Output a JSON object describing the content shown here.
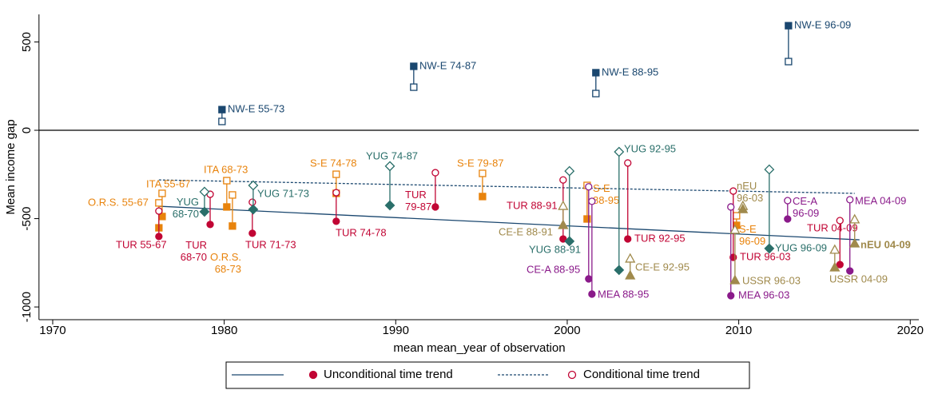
{
  "chart_data": {
    "type": "dropline-scatter",
    "y_axis_label": "Mean income gap",
    "x_axis_label": "mean mean_year of observation",
    "xlim": [
      1969.2,
      2020.5
    ],
    "ylim": [
      -1072,
      656
    ],
    "xticks": [
      1970,
      1980,
      1990,
      2000,
      2010,
      2020
    ],
    "yticks": [
      -1000,
      -500,
      0,
      500
    ],
    "yline": 0,
    "points": [
      {
        "label": "NW-E 55-73",
        "x": 1979.87,
        "unconditional": 117,
        "conditional": 50,
        "color": "#1a476f",
        "marker": "square"
      },
      {
        "label": "NW-E 74-87",
        "x": 1991.05,
        "unconditional": 362,
        "conditional": 244,
        "color": "#1a476f",
        "marker": "square"
      },
      {
        "label": "NW-E 88-95",
        "x": 2001.67,
        "unconditional": 326,
        "conditional": 208,
        "color": "#1a476f",
        "marker": "square"
      },
      {
        "label": "NW-E 96-09",
        "x": 2012.9,
        "unconditional": 592,
        "conditional": 389,
        "color": "#1a476f",
        "marker": "square"
      },
      {
        "label": "ITA 55-67",
        "x": 1976.38,
        "unconditional": -488,
        "conditional": -357,
        "color": "#e8830c",
        "marker": "square"
      },
      {
        "label": "O.R.S. 55-67",
        "x": 1976.19,
        "unconditional": -552,
        "conditional": -411,
        "color": "#e8830c",
        "marker": "square"
      },
      {
        "label": "ITA 68-73",
        "x": 1980.15,
        "unconditional": -434,
        "conditional": -285,
        "color": "#e8830c",
        "marker": "square"
      },
      {
        "label": "O.R.S. 68-73",
        "x": 1980.48,
        "unconditional": -542,
        "conditional": -366,
        "color": "#e8830c",
        "marker": "square"
      },
      {
        "label": "S-E 74-78",
        "x": 1986.53,
        "unconditional": -357,
        "conditional": -249,
        "color": "#e8830c",
        "marker": "square"
      },
      {
        "label": "S-E 79-87",
        "x": 1995.06,
        "unconditional": -375,
        "conditional": -244,
        "color": "#e8830c",
        "marker": "square"
      },
      {
        "label": "S-E 88-95",
        "x": 2001.16,
        "unconditional": -502,
        "conditional": -312,
        "color": "#e8830c",
        "marker": "square"
      },
      {
        "label": "S-E 96-09",
        "x": 2009.87,
        "unconditional": -538,
        "conditional": -484,
        "color": "#e8830c",
        "marker": "square"
      },
      {
        "label": "TUR 55-67",
        "x": 1976.19,
        "unconditional": -601,
        "conditional": -457,
        "color": "#c10534",
        "marker": "circle"
      },
      {
        "label": "TUR 68-70",
        "x": 1979.18,
        "unconditional": -533,
        "conditional": -362,
        "color": "#c10534",
        "marker": "circle"
      },
      {
        "label": "TUR 71-73",
        "x": 1981.64,
        "unconditional": -583,
        "conditional": -407,
        "color": "#c10534",
        "marker": "circle"
      },
      {
        "label": "TUR 74-78",
        "x": 1986.53,
        "unconditional": -515,
        "conditional": -353,
        "color": "#c10534",
        "marker": "circle"
      },
      {
        "label": "TUR 79-87",
        "x": 1992.31,
        "unconditional": -434,
        "conditional": -240,
        "color": "#c10534",
        "marker": "circle"
      },
      {
        "label": "TUR 88-91",
        "x": 1999.76,
        "unconditional": -615,
        "conditional": -281,
        "color": "#c10534",
        "marker": "circle"
      },
      {
        "label": "TUR 92-95",
        "x": 2003.53,
        "unconditional": -615,
        "conditional": -185,
        "color": "#c10534",
        "marker": "circle"
      },
      {
        "label": "TUR 96-03",
        "x": 2009.68,
        "unconditional": -719,
        "conditional": -344,
        "color": "#c10534",
        "marker": "circle"
      },
      {
        "label": "TUR 04-09",
        "x": 2015.9,
        "unconditional": -760,
        "conditional": -511,
        "color": "#c10534",
        "marker": "circle"
      },
      {
        "label": "YUG 68-70",
        "x": 1978.85,
        "unconditional": -461,
        "conditional": -348,
        "color": "#2a6f6a",
        "marker": "diamond"
      },
      {
        "label": "YUG 71-73",
        "x": 1981.69,
        "unconditional": -448,
        "conditional": -312,
        "color": "#2a6f6a",
        "marker": "diamond"
      },
      {
        "label": "YUG 74-87",
        "x": 1989.66,
        "unconditional": -425,
        "conditional": -203,
        "color": "#2a6f6a",
        "marker": "diamond"
      },
      {
        "label": "YUG 88-91",
        "x": 2000.13,
        "unconditional": -628,
        "conditional": -231,
        "color": "#2a6f6a",
        "marker": "diamond"
      },
      {
        "label": "YUG 92-95",
        "x": 2003.02,
        "unconditional": -791,
        "conditional": -122,
        "color": "#2a6f6a",
        "marker": "diamond"
      },
      {
        "label": "YUG 96-09",
        "x": 2011.78,
        "unconditional": -669,
        "conditional": -222,
        "color": "#2a6f6a",
        "marker": "diamond"
      },
      {
        "label": "MEA 88-95",
        "x": 2001.44,
        "unconditional": -927,
        "conditional": -402,
        "color": "#8a1a8a",
        "marker": "circle"
      },
      {
        "label": "MEA 96-03",
        "x": 2009.54,
        "unconditional": -936,
        "conditional": -434,
        "color": "#8a1a8a",
        "marker": "circle"
      },
      {
        "label": "MEA 04-09",
        "x": 2016.48,
        "unconditional": -796,
        "conditional": -393,
        "color": "#8a1a8a",
        "marker": "circle"
      },
      {
        "label": "CE-A 88-95",
        "x": 2001.25,
        "unconditional": -841,
        "conditional": -320,
        "color": "#8a1a8a",
        "marker": "circle"
      },
      {
        "label": "CE-A 96-09",
        "x": 2012.85,
        "unconditional": -502,
        "conditional": -398,
        "color": "#8a1a8a",
        "marker": "circle"
      },
      {
        "label": "CE-E 88-91",
        "x": 1999.76,
        "unconditional": -538,
        "conditional": -430,
        "color": "#a08a4c",
        "marker": "triangle"
      },
      {
        "label": "CE-E 92-95",
        "x": 2003.67,
        "unconditional": -823,
        "conditional": -728,
        "color": "#a08a4c",
        "marker": "triangle"
      },
      {
        "label": "nEU 96-03",
        "x": 2010.24,
        "unconditional": -448,
        "conditional": -430,
        "color": "#a08a4c",
        "marker": "triangle"
      },
      {
        "label": "USSR 96-03",
        "x": 2009.78,
        "unconditional": -850,
        "conditional": -565,
        "color": "#a08a4c",
        "marker": "triangle"
      },
      {
        "label": "USSR 04-09",
        "x": 2015.6,
        "unconditional": -778,
        "conditional": -678,
        "color": "#a08a4c",
        "marker": "triangle"
      },
      {
        "label": "nEU 04-09",
        "x": 2016.76,
        "unconditional": -642,
        "conditional": -506,
        "color": "#a08a4c",
        "marker": "triangle"
      }
    ],
    "trend_lines": [
      {
        "name": "Unconditional time trend",
        "x": [
          1976.19,
          2017.04
        ],
        "values": [
          -430,
          -620
        ],
        "color": "#1a476f",
        "dashed": false
      },
      {
        "name": "Conditional time trend",
        "x": [
          1976.19,
          2016.76
        ],
        "values": [
          -281,
          -357
        ],
        "color": "#1a476f",
        "dashed": true
      }
    ],
    "legend_marker_color": "#c10534"
  }
}
